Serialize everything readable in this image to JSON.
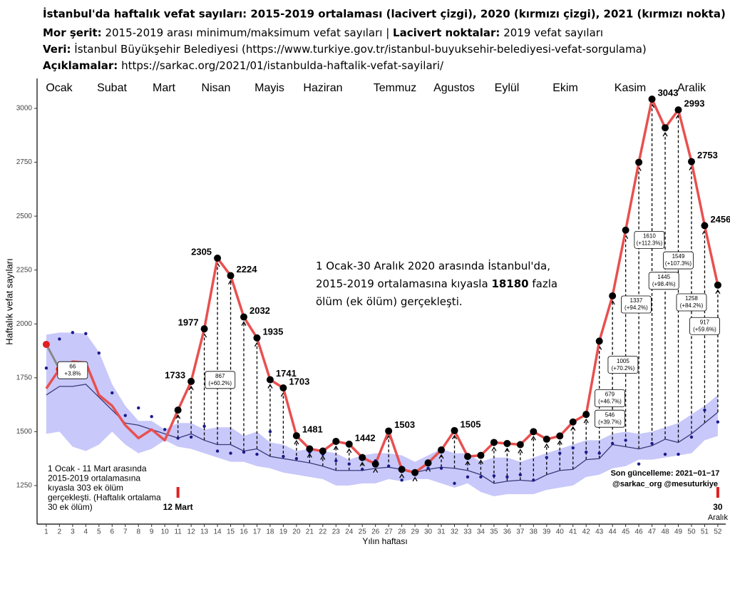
{
  "chart_data": {
    "type": "line",
    "title": "İstanbul'da haftalık vefat sayıları: 2015-2019 ortalaması (lacivert çizgi), 2020 (kırmızı çizgi), 2021 (kırmızı nokta)",
    "subtitle_lines": [
      [
        {
          "text": "Mor şerit:",
          "bold": true
        },
        {
          "text": " 2015-2019 arası minimum/maksimum vefat sayıları | ",
          "bold": false
        },
        {
          "text": "Lacivert noktalar:",
          "bold": true
        },
        {
          "text": " 2019 vefat sayıları",
          "bold": false
        }
      ],
      [
        {
          "text": "Veri:",
          "bold": true
        },
        {
          "text": " İstanbul Büyükşehir Belediyesi (https://www.turkiye.gov.tr/istanbul-buyuksehir-belediyesi-vefat-sorgulama)",
          "bold": false
        }
      ],
      [
        {
          "text": "Açıklamalar:",
          "bold": true
        },
        {
          "text": " https://sarkac.org/2021/01/istanbulda-haftalik-vefat-sayilari/",
          "bold": false
        }
      ]
    ],
    "x_label": "Yılın haftası",
    "y_label": "Haftalık vefat sayıları",
    "months": [
      "Ocak",
      "Subat",
      "Mart",
      "Nisan",
      "Mayis",
      "Haziran",
      "Temmuz",
      "Agustos",
      "Eylül",
      "Ekim",
      "Kasim",
      "Aralik"
    ],
    "x": [
      1,
      2,
      3,
      4,
      5,
      6,
      7,
      8,
      9,
      10,
      11,
      12,
      13,
      14,
      15,
      16,
      17,
      18,
      19,
      20,
      21,
      22,
      23,
      24,
      25,
      26,
      27,
      28,
      29,
      30,
      31,
      32,
      33,
      34,
      35,
      36,
      37,
      38,
      39,
      40,
      41,
      42,
      43,
      44,
      45,
      46,
      47,
      48,
      49,
      50,
      51,
      52
    ],
    "xlim": [
      0.3,
      52.6
    ],
    "xticks": [
      1,
      2,
      3,
      4,
      5,
      6,
      7,
      8,
      9,
      10,
      11,
      12,
      13,
      14,
      15,
      16,
      17,
      18,
      19,
      20,
      21,
      22,
      23,
      24,
      25,
      26,
      27,
      28,
      29,
      30,
      31,
      32,
      33,
      34,
      35,
      36,
      37,
      38,
      39,
      40,
      41,
      42,
      43,
      44,
      45,
      46,
      47,
      48,
      49,
      50,
      51,
      52
    ],
    "ylim": [
      1071,
      3139
    ],
    "yticks": [
      1250,
      1500,
      1750,
      2000,
      2250,
      2500,
      2750,
      3000
    ],
    "band": {
      "color": "#c8c8fa",
      "max": [
        1950,
        1960,
        1960,
        1955,
        1870,
        1720,
        1620,
        1550,
        1550,
        1510,
        1540,
        1540,
        1510,
        1520,
        1520,
        1480,
        1500,
        1450,
        1440,
        1410,
        1420,
        1410,
        1400,
        1370,
        1390,
        1400,
        1400,
        1390,
        1360,
        1390,
        1420,
        1400,
        1400,
        1360,
        1380,
        1380,
        1360,
        1380,
        1400,
        1420,
        1440,
        1460,
        1460,
        1490,
        1500,
        1490,
        1500,
        1520,
        1540,
        1580,
        1620,
        1670
      ],
      "min": [
        1490,
        1500,
        1430,
        1410,
        1440,
        1500,
        1440,
        1400,
        1420,
        1460,
        1430,
        1420,
        1400,
        1380,
        1360,
        1360,
        1340,
        1330,
        1310,
        1300,
        1290,
        1280,
        1250,
        1250,
        1260,
        1260,
        1280,
        1270,
        1280,
        1280,
        1260,
        1240,
        1260,
        1220,
        1200,
        1210,
        1210,
        1210,
        1230,
        1240,
        1250,
        1290,
        1300,
        1330,
        1340,
        1370,
        1370,
        1380,
        1390,
        1400,
        1460,
        1480
      ]
    },
    "series": [
      {
        "color": "#e8504f",
        "values": [
          1700,
          1790,
          1825,
          1820,
          1670,
          1620,
          1530,
          1470,
          1510,
          1460,
          1600,
          1733,
          1977,
          2305,
          2224,
          2032,
          1935,
          1741,
          1703,
          1481,
          1420,
          1410,
          1455,
          1442,
          1380,
          1350,
          1503,
          1325,
          1310,
          1355,
          1415,
          1505,
          1385,
          1390,
          1450,
          1445,
          1440,
          1500,
          1465,
          1480,
          1545,
          1580,
          1920,
          2130,
          2435,
          2750,
          3043,
          2910,
          2993,
          2753,
          2456,
          2180
        ],
        "value_labels": [
          null,
          null,
          null,
          null,
          null,
          null,
          null,
          null,
          null,
          null,
          null,
          "1733",
          "1977",
          "2305",
          "2224",
          "2032",
          "1935",
          "1741",
          "1703",
          "1481",
          null,
          null,
          null,
          "1442",
          null,
          null,
          "1503",
          null,
          null,
          null,
          null,
          "1505",
          null,
          null,
          null,
          null,
          null,
          null,
          null,
          null,
          null,
          null,
          null,
          null,
          null,
          null,
          "3043",
          null,
          "2993",
          "2753",
          "2456",
          null
        ]
      },
      {
        "color": "#3a3a7a",
        "values": [
          1670,
          1710,
          1710,
          1720,
          1660,
          1600,
          1540,
          1530,
          1510,
          1490,
          1470,
          1490,
          1460,
          1440,
          1440,
          1410,
          1420,
          1385,
          1375,
          1365,
          1355,
          1340,
          1320,
          1320,
          1320,
          1330,
          1335,
          1325,
          1310,
          1325,
          1335,
          1330,
          1320,
          1300,
          1260,
          1270,
          1275,
          1270,
          1300,
          1320,
          1325,
          1370,
          1375,
          1440,
          1430,
          1420,
          1435,
          1465,
          1450,
          1490,
          1540,
          1590
        ]
      }
    ],
    "points": [
      {
        "color": "#1a1a8a",
        "values": [
          1795,
          1930,
          1960,
          1955,
          1865,
          1680,
          1575,
          1610,
          1570,
          1510,
          1470,
          1475,
          1525,
          1410,
          1400,
          1405,
          1395,
          1500,
          1385,
          1375,
          1405,
          1395,
          1365,
          1350,
          1325,
          1365,
          1340,
          1275,
          1305,
          1330,
          1330,
          1260,
          1290,
          1290,
          1295,
          1290,
          1300,
          1275,
          1380,
          1400,
          1425,
          1405,
          1400,
          1445,
          1460,
          1350,
          1445,
          1395,
          1395,
          1475,
          1600,
          1545
        ]
      }
    ],
    "points_2021": {
      "color": "#e02020",
      "x": [
        1
      ],
      "values": [
        1905
      ]
    },
    "excess_boxes": [
      {
        "week": 3,
        "y": 1785,
        "lines": [
          "66",
          "+3.8%"
        ]
      },
      {
        "week": 14.2,
        "y": 1740,
        "lines": [
          "867",
          "(+60.2%)"
        ]
      },
      {
        "week": 43.8,
        "y": 1560,
        "lines": [
          "546",
          "(+39.7%)"
        ]
      },
      {
        "week": 43.8,
        "y": 1655,
        "lines": [
          "679",
          "(+46.7%)"
        ]
      },
      {
        "week": 44.8,
        "y": 1810,
        "lines": [
          "1005",
          "(+70.2%)"
        ]
      },
      {
        "week": 45.8,
        "y": 2090,
        "lines": [
          "1337",
          "(+94.2%)"
        ]
      },
      {
        "week": 46.8,
        "y": 2390,
        "lines": [
          "1610",
          "(+112.3%)"
        ]
      },
      {
        "week": 47.9,
        "y": 2200,
        "lines": [
          "1445",
          "(+98.4%)"
        ]
      },
      {
        "week": 49,
        "y": 2295,
        "lines": [
          "1549",
          "(+107.3%)"
        ]
      },
      {
        "week": 50,
        "y": 2100,
        "lines": [
          "1258",
          "(+84.2%)"
        ]
      },
      {
        "week": 51,
        "y": 1990,
        "lines": [
          "917",
          "(+59.6%)"
        ]
      }
    ],
    "center_note": [
      [
        {
          "text": "1 Ocak-30 Aralık 2020 arasında İstanbul'da,",
          "bold": false
        }
      ],
      [
        {
          "text": "2015-2019 ortalamasına kıyasla ",
          "bold": false
        },
        {
          "text": "18180",
          "bold": true
        },
        {
          "text": " fazla",
          "bold": false
        }
      ],
      [
        {
          "text": "ölüm (ek ölüm) gerçekleşti.",
          "bold": false
        }
      ]
    ],
    "left_note": [
      "1 Ocak - 11 Mart arasında",
      "2015-2019 ortalamasına",
      "kıyasla 303 ek ölüm",
      "gerçekleşti. (Haftalık ortalama",
      "30 ek ölüm)"
    ],
    "markers": [
      {
        "week": 11,
        "label": [
          "12 Mart"
        ]
      },
      {
        "week": 52,
        "label": [
          "30",
          "Aralık"
        ]
      }
    ],
    "update_note": [
      "Son güncelleme: 2021−01−17",
      "@sarkac_org @mesuturkiye"
    ]
  }
}
